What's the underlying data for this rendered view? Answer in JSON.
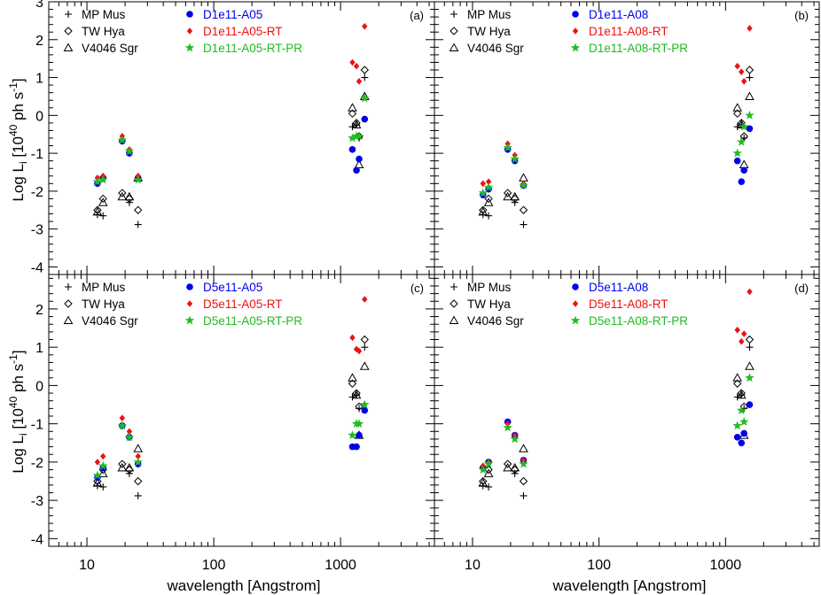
{
  "figure": {
    "y_axis_label_main": "Log L",
    "y_axis_label_sub": "i",
    "y_axis_label_bracket_open": " [10",
    "y_axis_label_exp": "40",
    "y_axis_label_unit": " ph s",
    "y_axis_label_exp2": "-1",
    "y_axis_label_bracket_close": "]",
    "x_axis_label": "wavelength [Angstrom]",
    "x_tick_labels": [
      "10",
      "100",
      "1000"
    ],
    "top_y_tick_labels": [
      "3",
      "2",
      "1",
      "0",
      "-1",
      "-2",
      "-3",
      "-4"
    ],
    "bottom_y_tick_labels": [
      "2",
      "1",
      "0",
      "-1",
      "-2",
      "-3",
      "-4"
    ]
  },
  "chart_data": [
    {
      "panel": "(a)",
      "type": "scatter",
      "xscale": "log",
      "xlim": [
        5,
        5500
      ],
      "ylim": [
        -4.2,
        3
      ],
      "xlabel": "",
      "ylabel": "Log Li [10^40 ph s^-1]",
      "legend_placement": "top-left",
      "series": [
        {
          "name": "MP Mus",
          "marker": "plus",
          "color": "#000000",
          "x": [
            12.1,
            13.4,
            21.6,
            25.3,
            1240,
            1335,
            1400,
            1549
          ],
          "y": [
            -2.62,
            -2.65,
            -2.3,
            -2.88,
            -0.3,
            -0.25,
            -0.6,
            1.0
          ]
        },
        {
          "name": "TW Hya",
          "marker": "diamond",
          "color": "#000000",
          "x": [
            12.1,
            13.4,
            18.97,
            21.6,
            25.3,
            1240,
            1335,
            1400,
            1549
          ],
          "y": [
            -2.5,
            -2.2,
            -2.05,
            -2.2,
            -2.5,
            0.05,
            -0.2,
            -0.55,
            1.2
          ]
        },
        {
          "name": "V4046 Sgr",
          "marker": "triangle",
          "color": "#000000",
          "x": [
            12.1,
            13.4,
            18.97,
            21.6,
            25.3,
            1240,
            1335,
            1400,
            1549
          ],
          "y": [
            -2.55,
            -2.3,
            -2.15,
            -2.15,
            -1.65,
            0.2,
            -0.25,
            -1.3,
            0.5
          ]
        },
        {
          "name": "D1e11-A05",
          "marker": "circle",
          "color": "#0000ee",
          "x": [
            12.1,
            13.4,
            18.97,
            21.6,
            25.3,
            1240,
            1335,
            1400,
            1549
          ],
          "y": [
            -1.8,
            -1.65,
            -0.68,
            -1.0,
            -1.65,
            -0.9,
            -1.45,
            -1.15,
            -0.1
          ]
        },
        {
          "name": "D1e11-A05-RT",
          "marker": "diamond",
          "color": "#ee1111",
          "x": [
            12.1,
            13.4,
            18.97,
            21.6,
            25.3,
            1240,
            1335,
            1400,
            1549
          ],
          "y": [
            -1.65,
            -1.6,
            -0.55,
            -0.9,
            -1.6,
            1.4,
            1.3,
            0.9,
            2.35
          ]
        },
        {
          "name": "D1e11-A05-RT-PR",
          "marker": "star",
          "color": "#22bb22",
          "x": [
            12.1,
            13.4,
            18.97,
            21.6,
            25.3,
            1240,
            1335,
            1400,
            1549
          ],
          "y": [
            -1.75,
            -1.7,
            -0.65,
            -0.95,
            -1.7,
            -0.6,
            -0.55,
            -0.55,
            0.45
          ]
        }
      ]
    },
    {
      "panel": "(b)",
      "type": "scatter",
      "xscale": "log",
      "xlim": [
        5,
        5500
      ],
      "ylim": [
        -4.2,
        3
      ],
      "xlabel": "",
      "ylabel": "",
      "legend_placement": "top-left",
      "series": [
        {
          "name": "MP Mus",
          "marker": "plus",
          "color": "#000000",
          "x": [
            12.1,
            13.4,
            21.6,
            25.3,
            1240,
            1335,
            1400,
            1549
          ],
          "y": [
            -2.62,
            -2.65,
            -2.3,
            -2.88,
            -0.3,
            -0.25,
            -0.6,
            1.0
          ]
        },
        {
          "name": "TW Hya",
          "marker": "diamond",
          "color": "#000000",
          "x": [
            12.1,
            13.4,
            18.97,
            21.6,
            25.3,
            1240,
            1335,
            1400,
            1549
          ],
          "y": [
            -2.5,
            -2.2,
            -2.05,
            -2.2,
            -2.5,
            0.05,
            -0.2,
            -0.55,
            1.2
          ]
        },
        {
          "name": "V4046 Sgr",
          "marker": "triangle",
          "color": "#000000",
          "x": [
            12.1,
            13.4,
            18.97,
            21.6,
            25.3,
            1240,
            1335,
            1400,
            1549
          ],
          "y": [
            -2.55,
            -2.3,
            -2.15,
            -2.15,
            -1.65,
            0.2,
            -0.25,
            -1.3,
            0.5
          ]
        },
        {
          "name": "D1e11-A08",
          "marker": "circle",
          "color": "#0000ee",
          "x": [
            12.1,
            13.4,
            18.97,
            21.6,
            25.3,
            1240,
            1335,
            1400,
            1549
          ],
          "y": [
            -2.1,
            -1.95,
            -0.9,
            -1.2,
            -1.85,
            -1.2,
            -1.75,
            -1.45,
            -0.35
          ]
        },
        {
          "name": "D1e11-A08-RT",
          "marker": "diamond",
          "color": "#ee1111",
          "x": [
            12.1,
            13.4,
            18.97,
            21.6,
            25.3,
            1240,
            1335,
            1400,
            1549
          ],
          "y": [
            -1.8,
            -1.75,
            -0.75,
            -1.05,
            -1.8,
            1.3,
            1.15,
            0.9,
            2.3
          ]
        },
        {
          "name": "D1e11-A08-RT-PR",
          "marker": "star",
          "color": "#22bb22",
          "x": [
            12.1,
            13.4,
            18.97,
            21.6,
            25.3,
            1240,
            1335,
            1400,
            1549
          ],
          "y": [
            -2.05,
            -1.9,
            -0.85,
            -1.15,
            -1.85,
            -1.0,
            -0.7,
            -0.3,
            0.0
          ]
        }
      ]
    },
    {
      "panel": "(c)",
      "type": "scatter",
      "xscale": "log",
      "xlim": [
        5,
        5500
      ],
      "ylim": [
        -4.2,
        2.9
      ],
      "xlabel": "wavelength [Angstrom]",
      "ylabel": "Log Li [10^40 ph s^-1]",
      "legend_placement": "top-left",
      "series": [
        {
          "name": "MP Mus",
          "marker": "plus",
          "color": "#000000",
          "x": [
            12.1,
            13.4,
            21.6,
            25.3,
            1240,
            1335,
            1400,
            1549
          ],
          "y": [
            -2.62,
            -2.65,
            -2.3,
            -2.88,
            -0.3,
            -0.25,
            -0.6,
            1.0
          ]
        },
        {
          "name": "TW Hya",
          "marker": "diamond",
          "color": "#000000",
          "x": [
            12.1,
            13.4,
            18.97,
            21.6,
            25.3,
            1240,
            1335,
            1400,
            1549
          ],
          "y": [
            -2.5,
            -2.2,
            -2.05,
            -2.2,
            -2.5,
            0.05,
            -0.2,
            -0.55,
            1.2
          ]
        },
        {
          "name": "V4046 Sgr",
          "marker": "triangle",
          "color": "#000000",
          "x": [
            12.1,
            13.4,
            18.97,
            21.6,
            25.3,
            1240,
            1335,
            1400,
            1549
          ],
          "y": [
            -2.55,
            -2.3,
            -2.15,
            -2.15,
            -1.65,
            0.2,
            -0.25,
            -1.3,
            0.5
          ]
        },
        {
          "name": "D5e11-A05",
          "marker": "circle",
          "color": "#0000ee",
          "x": [
            12.1,
            13.4,
            18.97,
            21.6,
            25.3,
            1240,
            1335,
            1400,
            1549
          ],
          "y": [
            -2.4,
            -2.15,
            -1.05,
            -1.35,
            -2.05,
            -1.6,
            -1.6,
            -1.3,
            -0.65
          ]
        },
        {
          "name": "D5e11-A05-RT",
          "marker": "diamond",
          "color": "#ee1111",
          "x": [
            12.1,
            13.4,
            18.97,
            21.6,
            25.3,
            1240,
            1335,
            1400,
            1549
          ],
          "y": [
            -2.0,
            -1.85,
            -0.85,
            -1.2,
            -1.85,
            1.25,
            0.95,
            0.9,
            2.25
          ]
        },
        {
          "name": "D5e11-A05-RT-PR",
          "marker": "star",
          "color": "#22bb22",
          "x": [
            12.1,
            13.4,
            18.97,
            21.6,
            25.3,
            1240,
            1335,
            1400,
            1549
          ],
          "y": [
            -2.35,
            -2.1,
            -1.05,
            -1.35,
            -2.0,
            -1.3,
            -1.0,
            -1.0,
            -0.5
          ]
        }
      ]
    },
    {
      "panel": "(d)",
      "type": "scatter",
      "xscale": "log",
      "xlim": [
        5,
        5500
      ],
      "ylim": [
        -4.2,
        2.9
      ],
      "xlabel": "wavelength [Angstrom]",
      "ylabel": "",
      "legend_placement": "top-left",
      "series": [
        {
          "name": "MP Mus",
          "marker": "plus",
          "color": "#000000",
          "x": [
            12.1,
            13.4,
            21.6,
            25.3,
            1240,
            1335,
            1400,
            1549
          ],
          "y": [
            -2.62,
            -2.65,
            -2.3,
            -2.88,
            -0.3,
            -0.25,
            -0.6,
            1.0
          ]
        },
        {
          "name": "TW Hya",
          "marker": "diamond",
          "color": "#000000",
          "x": [
            12.1,
            13.4,
            18.97,
            21.6,
            25.3,
            1240,
            1335,
            1400,
            1549
          ],
          "y": [
            -2.5,
            -2.2,
            -2.05,
            -2.2,
            -2.5,
            0.05,
            -0.2,
            -0.55,
            1.2
          ]
        },
        {
          "name": "V4046 Sgr",
          "marker": "triangle",
          "color": "#000000",
          "x": [
            12.1,
            13.4,
            18.97,
            21.6,
            25.3,
            1240,
            1335,
            1400,
            1549
          ],
          "y": [
            -2.55,
            -2.3,
            -2.15,
            -2.15,
            -1.65,
            0.2,
            -0.25,
            -1.3,
            0.5
          ]
        },
        {
          "name": "D5e11-A08",
          "marker": "circle",
          "color": "#0000ee",
          "x": [
            12.1,
            13.4,
            18.97,
            21.6,
            25.3,
            1240,
            1335,
            1400,
            1549
          ],
          "y": [
            -2.15,
            -2.0,
            -0.95,
            -1.3,
            -1.95,
            -1.35,
            -1.5,
            -1.25,
            -0.5
          ]
        },
        {
          "name": "D5e11-A08-RT",
          "marker": "diamond",
          "color": "#ee1111",
          "x": [
            12.1,
            13.4,
            18.97,
            21.6,
            25.3,
            1240,
            1335,
            1400,
            1549
          ],
          "y": [
            -2.1,
            -2.0,
            -1.0,
            -1.3,
            -1.95,
            1.45,
            1.15,
            1.35,
            2.45
          ]
        },
        {
          "name": "D5e11-A08-RT-PR",
          "marker": "star",
          "color": "#22bb22",
          "x": [
            12.1,
            13.4,
            18.97,
            21.6,
            25.3,
            1240,
            1335,
            1400,
            1549
          ],
          "y": [
            -2.2,
            -2.05,
            -1.1,
            -1.4,
            -2.05,
            -1.05,
            -0.65,
            -0.95,
            0.2
          ]
        }
      ]
    }
  ]
}
